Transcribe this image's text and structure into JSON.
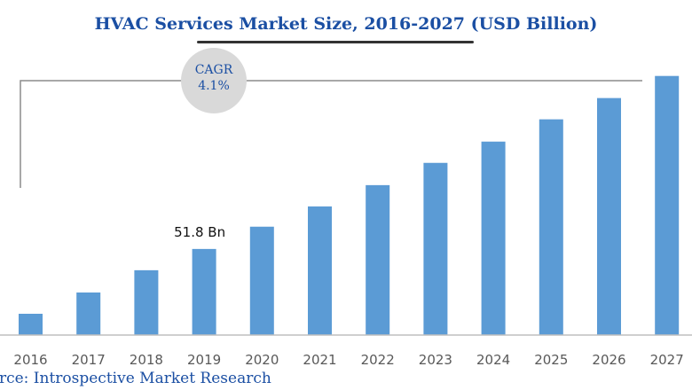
{
  "chart_data": {
    "type": "bar",
    "title": "HVAC Services Market Size, 2016-2027 (USD Billion)",
    "xlabel": "",
    "ylabel": "",
    "categories": [
      "2016",
      "2017",
      "2018",
      "2019",
      "2020",
      "2021",
      "2022",
      "2023",
      "2024",
      "2025",
      "2026",
      "2027"
    ],
    "values": [
      12.8,
      25.6,
      39.0,
      51.8,
      65.2,
      77.4,
      90.2,
      103.6,
      116.4,
      129.8,
      142.6,
      155.9
    ],
    "ylim": [
      0,
      160
    ],
    "grid": false,
    "bar_color": "#5b9bd5",
    "data_labels": [
      {
        "category": "2019",
        "text": "51.8 Bn"
      }
    ],
    "annotation": {
      "label": "CAGR",
      "value": "4.1%"
    },
    "source": "urce: Introspective Market Research"
  }
}
